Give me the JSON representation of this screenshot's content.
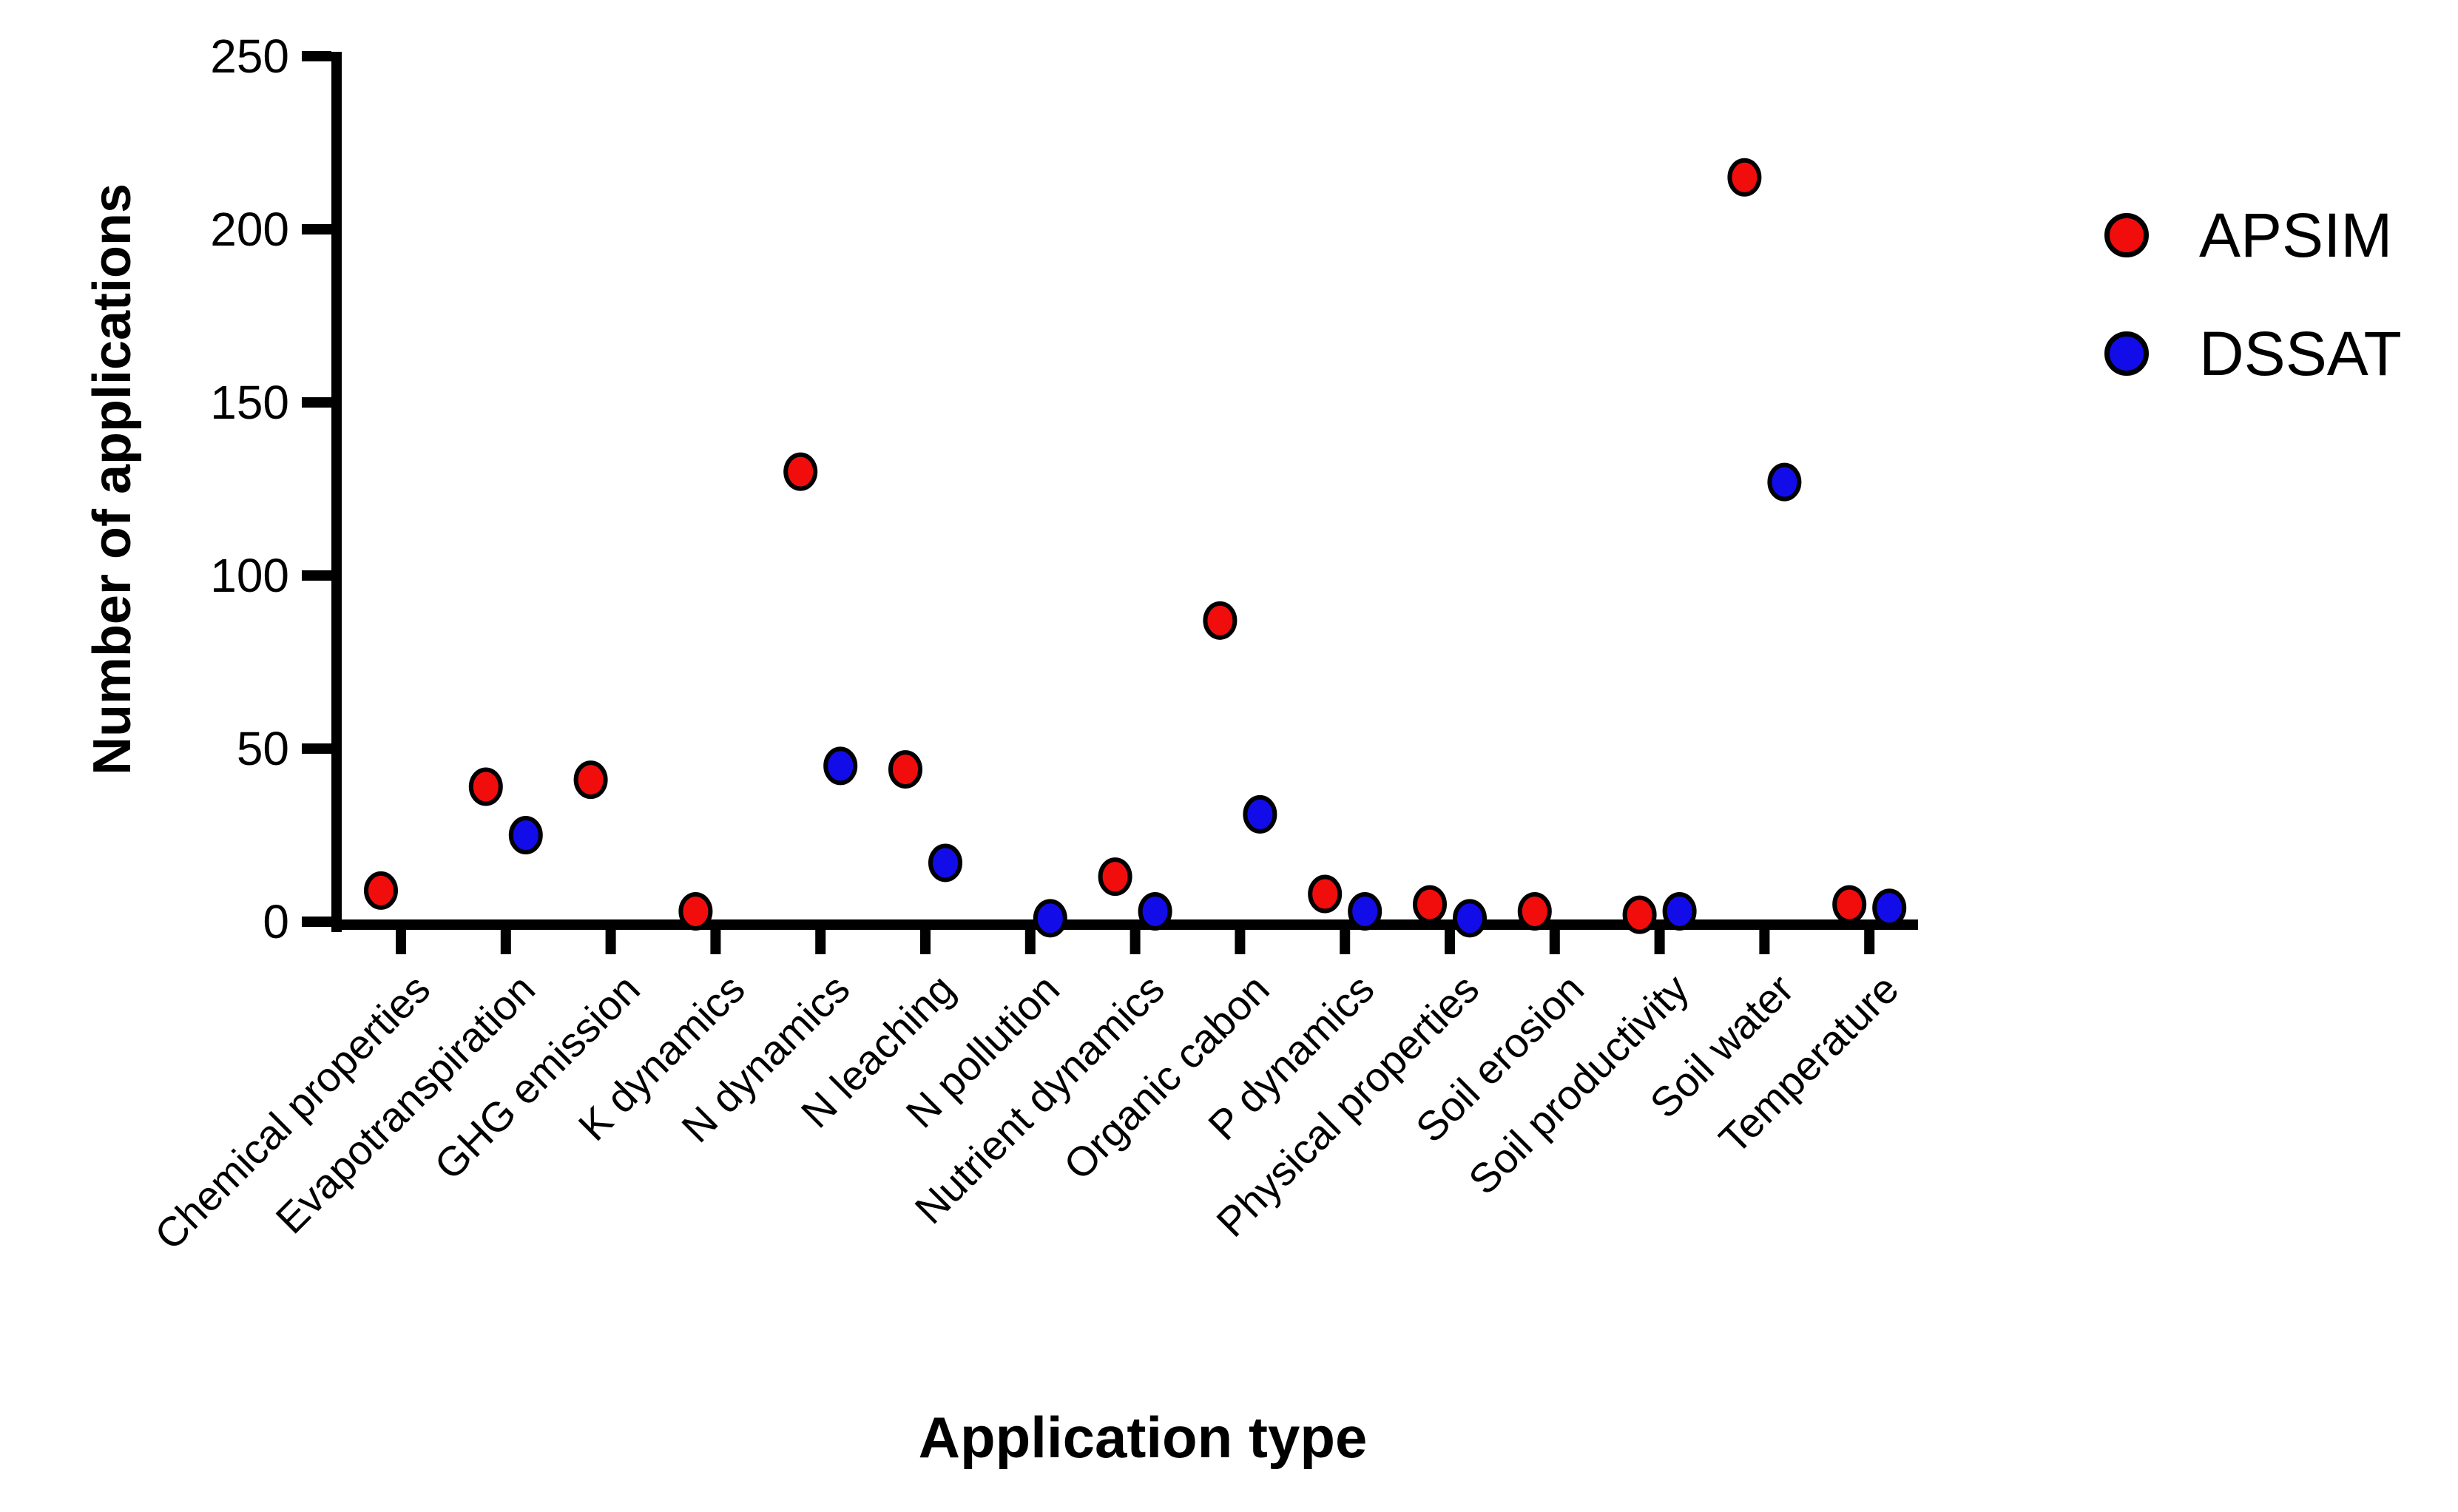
{
  "chart_data": {
    "type": "scatter",
    "title": "",
    "xlabel": "Application type",
    "ylabel": "Number of applications",
    "ylim": [
      0,
      250
    ],
    "yticks": [
      0,
      50,
      100,
      150,
      200,
      250
    ],
    "grid": false,
    "legend_position": "right",
    "categories": [
      "Chemical properties",
      "Evapotranspiration",
      "GHG emission",
      "K dynamics",
      "N dynamics",
      "N leaching",
      "N pollution",
      "Nutrient dynamics",
      "Organic cabon",
      "P dynamics",
      "Physical properties",
      "Soil erosion",
      "Soil productivity",
      "Soil water",
      "Temperature"
    ],
    "series": [
      {
        "name": "APSIM",
        "color": "#f20d0d",
        "values": [
          9,
          39,
          41,
          3,
          130,
          44,
          null,
          13,
          87,
          8,
          5,
          3,
          2,
          215,
          5
        ]
      },
      {
        "name": "DSSAT",
        "color": "#120de8",
        "values": [
          null,
          25,
          null,
          null,
          45,
          17,
          1,
          3,
          31,
          3,
          1,
          null,
          3,
          127,
          4
        ]
      }
    ]
  },
  "y_axis_title": "Number of applications",
  "x_axis_title": "Application type",
  "legend": {
    "items": [
      {
        "label": "APSIM",
        "color": "#f20d0d"
      },
      {
        "label": "DSSAT",
        "color": "#120de8"
      }
    ]
  }
}
